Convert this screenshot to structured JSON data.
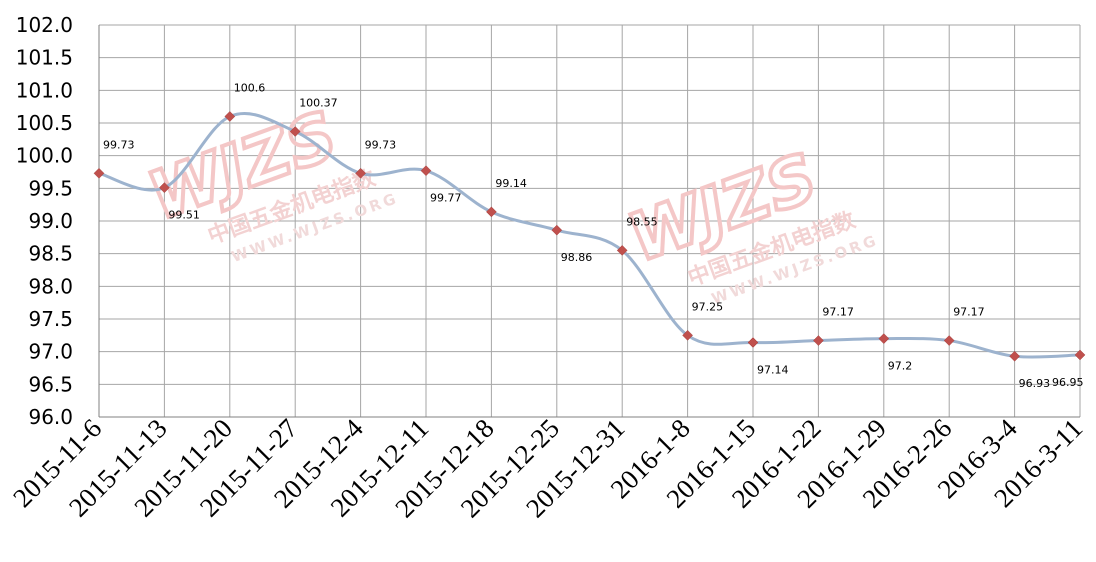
{
  "watermark": {
    "logo_text": "WJZS",
    "chinese_text": "中国五金机电指数",
    "url_text": "WWW.WJZS.ORG"
  },
  "chart_data": {
    "type": "line",
    "title": "",
    "xlabel": "",
    "ylabel": "",
    "ylim": [
      96.0,
      102.0
    ],
    "ytick_step": 0.5,
    "ytick_labels": [
      "96.0",
      "96.5",
      "97.0",
      "97.5",
      "98.0",
      "98.5",
      "99.0",
      "99.5",
      "100.0",
      "100.5",
      "101.0",
      "101.5",
      "102.0"
    ],
    "grid": true,
    "line_color": "#9db3ce",
    "marker_color": "#c0504d",
    "marker": "diamond",
    "smooth": true,
    "categories": [
      "2015-11-6",
      "2015-11-13",
      "2015-11-20",
      "2015-11-27",
      "2015-12-4",
      "2015-12-11",
      "2015-12-18",
      "2015-12-25",
      "2015-12-31",
      "2016-1-8",
      "2016-1-15",
      "2016-1-22",
      "2016-1-29",
      "2016-2-26",
      "2016-3-4",
      "2016-3-11"
    ],
    "values": [
      99.73,
      99.51,
      100.6,
      100.37,
      99.73,
      99.77,
      99.14,
      98.86,
      98.55,
      97.25,
      97.14,
      97.17,
      97.2,
      97.17,
      96.93,
      96.95
    ],
    "data_labels": [
      "99.73",
      "99.51",
      "100.6",
      "100.37",
      "99.73",
      "99.77",
      "99.14",
      "98.86",
      "98.55",
      "97.25",
      "97.14",
      "97.17",
      "97.2",
      "97.17",
      "96.93",
      "96.95"
    ],
    "label_positions": [
      "above",
      "below",
      "above",
      "above",
      "above",
      "below",
      "above",
      "below",
      "above",
      "above",
      "below",
      "above",
      "below",
      "above",
      "below",
      "below"
    ]
  }
}
